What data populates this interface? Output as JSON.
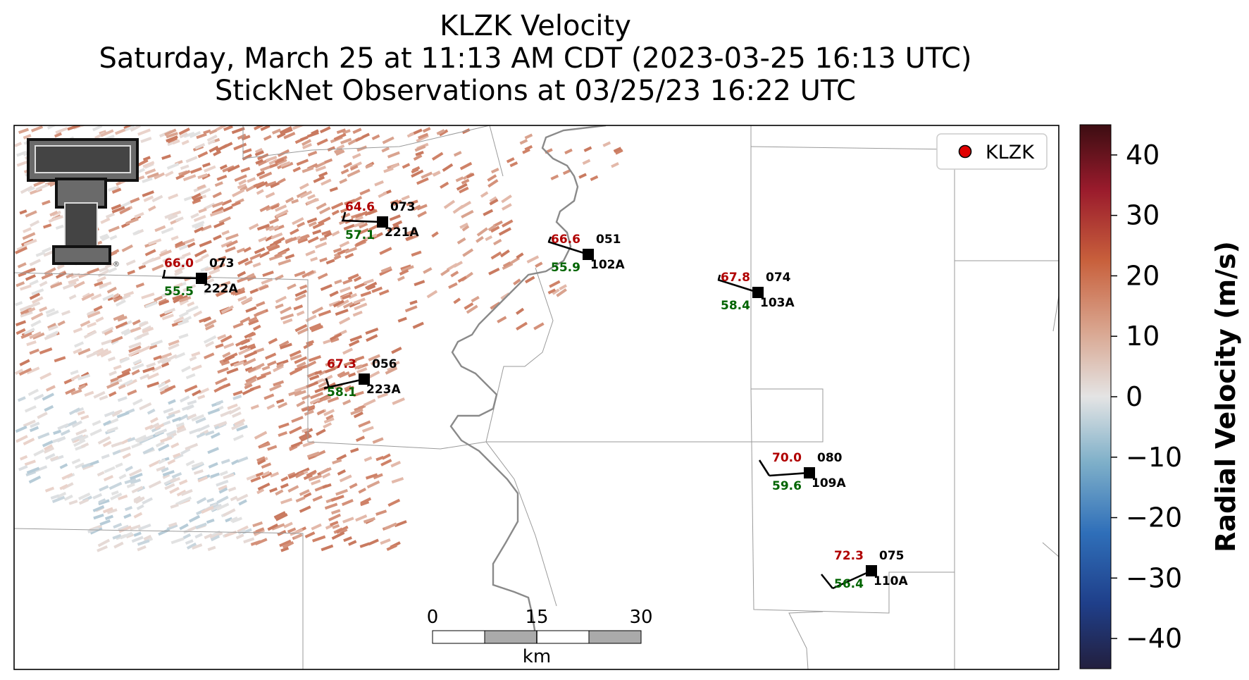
{
  "title": {
    "line1": "KLZK Velocity",
    "line2": "Saturday, March 25 at 11:13 AM CDT (2023-03-25 16:13 UTC)",
    "line3": "StickNet Observations at 03/25/23 16:22 UTC"
  },
  "legend": {
    "label": "KLZK",
    "marker_color": "#e00000"
  },
  "colorbar": {
    "label": "Radial Velocity (m/s)",
    "ticks": [
      "40",
      "30",
      "20",
      "10",
      "0",
      "−10",
      "−20",
      "−30",
      "−40"
    ],
    "range": [
      -45,
      45
    ],
    "colors": [
      "#231f3e",
      "#1f3f8a",
      "#2f6fb9",
      "#7fb0c9",
      "#e4e4e4",
      "#d9a690",
      "#c8603c",
      "#9a1b2c",
      "#3c0d12"
    ]
  },
  "scale_bar": {
    "labels": [
      "0",
      "15",
      "30"
    ],
    "unit": "km"
  },
  "logo": {
    "name": "texas-tech-double-t-logo"
  },
  "stations": [
    {
      "id": "222A",
      "temp": "66.0",
      "dew": "55.5",
      "dir": "073"
    },
    {
      "id": "221A",
      "temp": "64.6",
      "dew": "57.1",
      "dir": "073"
    },
    {
      "id": "102A",
      "temp": "66.6",
      "dew": "55.9",
      "dir": "051"
    },
    {
      "id": "103A",
      "temp": "67.8",
      "dew": "58.4",
      "dir": "074"
    },
    {
      "id": "223A",
      "temp": "67.3",
      "dew": "58.1",
      "dir": "056"
    },
    {
      "id": "109A",
      "temp": "70.0",
      "dew": "59.6",
      "dir": "080"
    },
    {
      "id": "110A",
      "temp": "72.3",
      "dew": "56.4",
      "dir": "075"
    }
  ]
}
